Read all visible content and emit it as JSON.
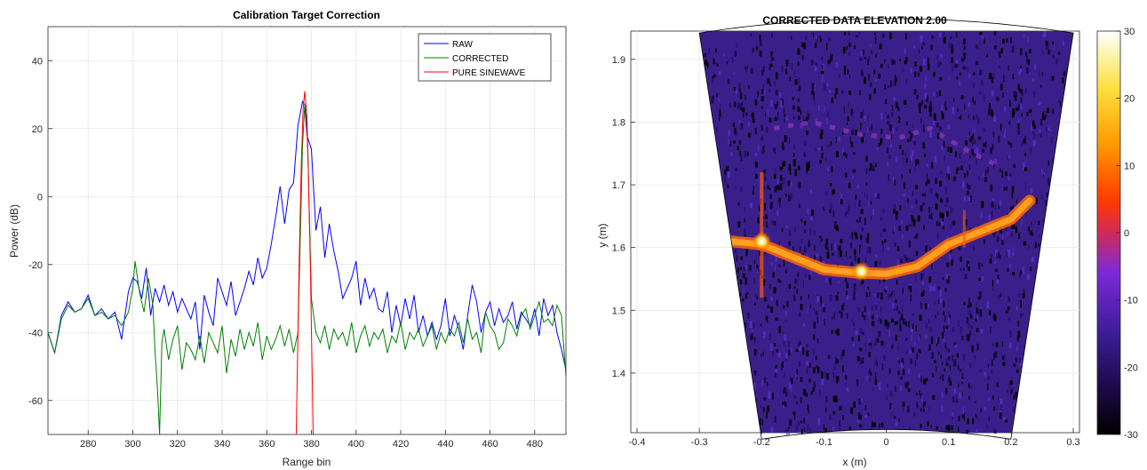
{
  "chart_data": [
    {
      "type": "line",
      "title": "Calibration Target Correction",
      "xlabel": "Range bin",
      "ylabel": "Power (dB)",
      "xlim": [
        262,
        494
      ],
      "ylim": [
        -70,
        50
      ],
      "xticks": [
        280,
        300,
        320,
        340,
        360,
        380,
        400,
        420,
        440,
        460,
        480
      ],
      "yticks": [
        40,
        20,
        0,
        -20,
        -40,
        -60
      ],
      "grid": true,
      "legend_position": "top-right",
      "colors": {
        "RAW": "#0000ff",
        "CORRECTED": "#008000",
        "PURE SINEWAVE": "#ff0000"
      },
      "series": [
        {
          "name": "RAW",
          "x": [
            262,
            265,
            268,
            271,
            274,
            277,
            280,
            283,
            286,
            289,
            292,
            295,
            298,
            300,
            302,
            304,
            306,
            308,
            310,
            312,
            314,
            316,
            318,
            320,
            322,
            324,
            326,
            328,
            330,
            332,
            334,
            336,
            338,
            340,
            342,
            344,
            346,
            348,
            350,
            352,
            354,
            356,
            358,
            360,
            362,
            364,
            366,
            368,
            370,
            372,
            374,
            376,
            377,
            378,
            380,
            382,
            384,
            386,
            388,
            390,
            392,
            394,
            396,
            398,
            400,
            402,
            404,
            406,
            408,
            410,
            412,
            414,
            416,
            418,
            420,
            422,
            424,
            426,
            428,
            430,
            432,
            434,
            436,
            438,
            440,
            442,
            444,
            446,
            448,
            450,
            452,
            454,
            456,
            458,
            460,
            462,
            464,
            466,
            468,
            470,
            472,
            474,
            476,
            478,
            480,
            482,
            484,
            486,
            488,
            490,
            492,
            494
          ],
          "y": [
            -40,
            -46,
            -35,
            -31,
            -34,
            -33,
            -29,
            -35,
            -33,
            -36,
            -34,
            -42,
            -28,
            -24,
            -25,
            -30,
            -21,
            -35,
            -27,
            -31,
            -26,
            -32,
            -28,
            -34,
            -30,
            -33,
            -36,
            -31,
            -45,
            -29,
            -34,
            -38,
            -24,
            -28,
            -32,
            -25,
            -35,
            -31,
            -27,
            -22,
            -26,
            -18,
            -24,
            -21,
            -14,
            -6,
            3,
            -8,
            2,
            4,
            21,
            28,
            27,
            18,
            14,
            -10,
            -3,
            -18,
            -8,
            -16,
            -22,
            -30,
            -27,
            -24,
            -19,
            -32,
            -24,
            -30,
            -27,
            -33,
            -34,
            -28,
            -40,
            -32,
            -38,
            -30,
            -36,
            -29,
            -40,
            -35,
            -41,
            -37,
            -42,
            -38,
            -30,
            -41,
            -35,
            -39,
            -45,
            -35,
            -26,
            -31,
            -40,
            -34,
            -31,
            -38,
            -33,
            -37,
            -35,
            -31,
            -39,
            -34,
            -36,
            -38,
            -33,
            -41,
            -30,
            -35,
            -32,
            -40,
            -45,
            -51
          ]
        },
        {
          "name": "CORRECTED",
          "x": [
            262,
            265,
            268,
            271,
            274,
            277,
            280,
            283,
            286,
            289,
            292,
            295,
            298,
            300,
            301,
            303,
            305,
            307,
            309,
            310,
            311,
            312,
            313,
            314,
            316,
            318,
            320,
            322,
            324,
            326,
            328,
            330,
            332,
            334,
            336,
            338,
            340,
            342,
            344,
            346,
            348,
            350,
            352,
            354,
            356,
            358,
            360,
            362,
            364,
            366,
            368,
            370,
            372,
            374,
            376,
            377,
            378,
            380,
            382,
            384,
            386,
            388,
            390,
            392,
            394,
            396,
            398,
            400,
            402,
            404,
            406,
            408,
            410,
            412,
            414,
            416,
            418,
            420,
            422,
            424,
            426,
            428,
            430,
            432,
            434,
            436,
            438,
            440,
            442,
            444,
            446,
            448,
            450,
            452,
            454,
            456,
            458,
            460,
            462,
            464,
            466,
            468,
            470,
            472,
            474,
            476,
            478,
            480,
            482,
            484,
            486,
            488,
            490,
            492,
            494
          ],
          "y": [
            -40,
            -46,
            -36,
            -32,
            -34,
            -33,
            -30,
            -35,
            -34,
            -36,
            -35,
            -38,
            -34,
            -27,
            -19,
            -28,
            -34,
            -24,
            -32,
            -46,
            -56,
            -70,
            -43,
            -39,
            -48,
            -42,
            -38,
            -51,
            -43,
            -45,
            -48,
            -41,
            -49,
            -40,
            -43,
            -46,
            -38,
            -52,
            -42,
            -47,
            -39,
            -45,
            -40,
            -44,
            -37,
            -48,
            -41,
            -45,
            -42,
            -38,
            -44,
            -39,
            -46,
            -40,
            15,
            27,
            24,
            -30,
            -40,
            -43,
            -38,
            -45,
            -39,
            -42,
            -40,
            -44,
            -37,
            -46,
            -41,
            -38,
            -44,
            -40,
            -42,
            -39,
            -46,
            -41,
            -43,
            -37,
            -45,
            -40,
            -42,
            -39,
            -44,
            -41,
            -38,
            -45,
            -40,
            -43,
            -39,
            -41,
            -37,
            -43,
            -36,
            -42,
            -40,
            -46,
            -34,
            -38,
            -40,
            -45,
            -43,
            -36,
            -38,
            -41,
            -35,
            -33,
            -39,
            -35,
            -31,
            -37,
            -36,
            -38,
            -32,
            -35,
            -53
          ]
        },
        {
          "name": "PURE SINEWAVE",
          "x": [
            373.2,
            374.5,
            375.5,
            376.3,
            377,
            377.7,
            378.5,
            379.5,
            380.8
          ],
          "y": [
            -70,
            -20,
            10,
            26,
            31,
            26,
            10,
            -20,
            -70
          ]
        }
      ]
    },
    {
      "type": "heatmap",
      "title": "CORRECTED DATA ELEVATION 2.00",
      "xlabel": "x (m)",
      "ylabel": "y (m)",
      "xlim": [
        -0.41,
        0.31
      ],
      "ylim": [
        1.305,
        1.945
      ],
      "xticks": [
        "-0.4",
        "-0.3",
        "-0.2",
        "-0.1",
        "0",
        "0.1",
        "0.2",
        "0.3"
      ],
      "yticks": [
        "1.9",
        "1.8",
        "1.7",
        "1.6",
        "1.5",
        "1.4"
      ],
      "colorbar": {
        "min": -30,
        "max": 30,
        "ticks": [
          "30",
          "20",
          "10",
          "0",
          "-10",
          "-20",
          "-30"
        ]
      },
      "colormap": [
        "#000000",
        "#2a0a5e",
        "#5c1ca8",
        "#8a2bd8",
        "#c0306a",
        "#ff3000",
        "#ff8c00",
        "#ffd700",
        "#ffffc8",
        "#ffffff"
      ],
      "sector": {
        "angle_deg": 18,
        "r_min": 1.31,
        "r_max": 1.965,
        "half_width_at_rmax": 0.3
      },
      "target_arc": [
        {
          "x": -0.295,
          "y": 1.635
        },
        {
          "x": -0.25,
          "y": 1.61
        },
        {
          "x": -0.2,
          "y": 1.605
        },
        {
          "x": -0.15,
          "y": 1.585
        },
        {
          "x": -0.1,
          "y": 1.565
        },
        {
          "x": -0.05,
          "y": 1.56
        },
        {
          "x": 0.0,
          "y": 1.558
        },
        {
          "x": 0.05,
          "y": 1.57
        },
        {
          "x": 0.1,
          "y": 1.605
        },
        {
          "x": 0.15,
          "y": 1.625
        },
        {
          "x": 0.2,
          "y": 1.645
        },
        {
          "x": 0.23,
          "y": 1.675
        }
      ],
      "hot_spots": [
        {
          "x": -0.2,
          "y": 1.61,
          "value": 30
        },
        {
          "x": -0.04,
          "y": 1.562,
          "value": 25
        }
      ]
    }
  ]
}
